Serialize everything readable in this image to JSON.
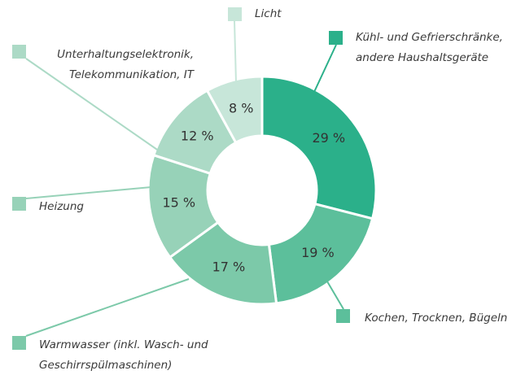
{
  "chart_data": {
    "type": "donut",
    "categories": [
      "Kühl- und Gefrierschränke,\nandere Haushaltsgeräte",
      "Kochen, Trocknen, Bügeln",
      "Warmwasser (inkl. Wasch- und\nGeschirrspülmaschinen)",
      "Heizung",
      "Unterhaltungselektronik,\nTelekommunikation, IT",
      "Licht"
    ],
    "values": [
      29,
      19,
      17,
      15,
      12,
      8
    ],
    "value_labels": [
      "29 %",
      "19 %",
      "17 %",
      "15 %",
      "12 %",
      "8 %"
    ],
    "colors": [
      "#2bb08a",
      "#5cbf9b",
      "#7cc9a9",
      "#97d2b8",
      "#acdac6",
      "#c7e6d9"
    ]
  }
}
